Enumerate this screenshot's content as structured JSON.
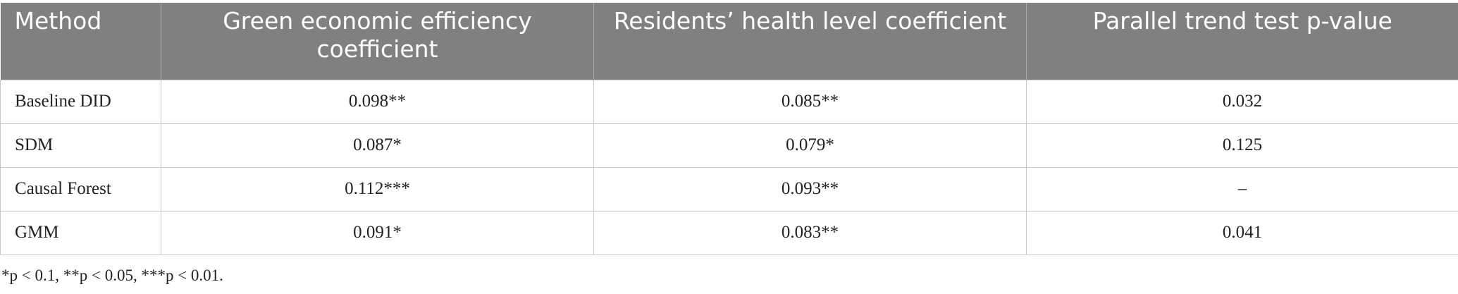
{
  "table": {
    "header": [
      "Method",
      "Green economic efficiency coefficient",
      "Residents’ health level coefficient",
      "Parallel trend test p-value"
    ],
    "rows": [
      [
        "Baseline DID",
        "0.098**",
        "0.085**",
        "0.032"
      ],
      [
        "SDM",
        "0.087*",
        "0.079*",
        "0.125"
      ],
      [
        "Causal Forest",
        "0.112***",
        "0.093**",
        "–"
      ],
      [
        "GMM",
        "0.091*",
        "0.083**",
        "0.041"
      ]
    ]
  },
  "footnote": "*p < 0.1, **p < 0.05, ***p < 0.01."
}
